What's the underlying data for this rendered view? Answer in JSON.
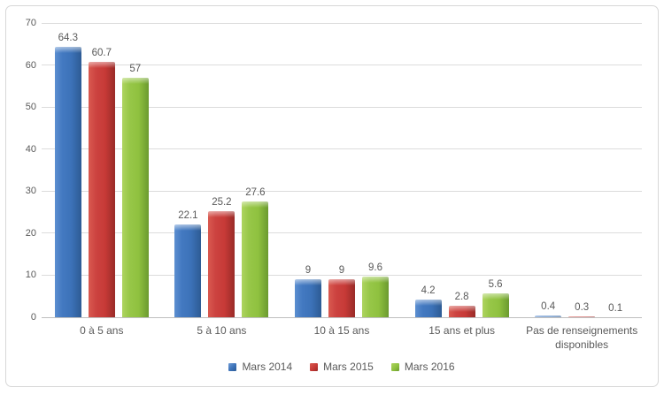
{
  "chart_data": {
    "type": "bar",
    "categories": [
      "0 à 5 ans",
      "5 à 10 ans",
      "10 à 15 ans",
      "15 ans et plus",
      "Pas de renseignements disponibles"
    ],
    "series": [
      {
        "name": "Mars 2014",
        "color": "#3c72b8",
        "values": [
          64.3,
          22.1,
          9,
          4.2,
          0.4
        ]
      },
      {
        "name": "Mars 2015",
        "color": "#c73a37",
        "values": [
          60.7,
          25.2,
          9,
          2.8,
          0.3
        ]
      },
      {
        "name": "Mars 2016",
        "color": "#8fc13f",
        "values": [
          57,
          27.6,
          9.6,
          5.6,
          0.1
        ]
      }
    ],
    "title": "",
    "xlabel": "",
    "ylabel": "",
    "ylim": [
      0,
      70
    ],
    "ytick_step": 10,
    "yticks": [
      0,
      10,
      20,
      30,
      40,
      50,
      60,
      70
    ],
    "grid": "horizontal",
    "legend_position": "bottom",
    "data_labels": true,
    "colors": {
      "grid": "#dcdcdc",
      "axis_line": "#bfbfbf",
      "text": "#595959",
      "figure_border": "#d7d7d7",
      "background": "#ffffff"
    }
  }
}
